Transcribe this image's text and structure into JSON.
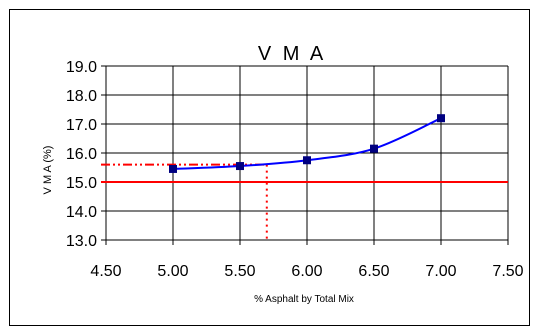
{
  "chart_data": {
    "type": "scatter",
    "title": "V M A",
    "xlabel": "% Asphalt by Total Mix",
    "ylabel": "V M A (%)",
    "xlim": [
      4.5,
      7.5
    ],
    "ylim": [
      13.0,
      19.0
    ],
    "x_ticks": [
      "4.50",
      "5.00",
      "5.50",
      "6.00",
      "6.50",
      "7.00",
      "7.50"
    ],
    "y_ticks": [
      "13.0",
      "14.0",
      "15.0",
      "16.0",
      "17.0",
      "18.0",
      "19.0"
    ],
    "grid": true,
    "legend": "none",
    "series": [
      {
        "x": [
          5.0,
          5.5,
          6.0,
          6.5,
          7.0
        ],
        "y": [
          15.45,
          15.55,
          15.75,
          16.15,
          17.2
        ],
        "marker_color": "#000080",
        "fit_color": "#0000ff",
        "fit_line": true
      }
    ],
    "reference_lines": [
      {
        "kind": "horizontal",
        "y": 15.0,
        "color": "#ff0000",
        "style": "solid"
      },
      {
        "kind": "horizontal",
        "y": 15.6,
        "x_end": 5.7,
        "color": "#ff0000",
        "style": "dash-dot"
      },
      {
        "kind": "vertical",
        "x": 5.7,
        "y_end": 15.6,
        "color": "#ff0000",
        "style": "dotted"
      }
    ],
    "colors": {
      "grid": "#000000",
      "axis": "#000000",
      "reference": "#ff0000"
    }
  }
}
